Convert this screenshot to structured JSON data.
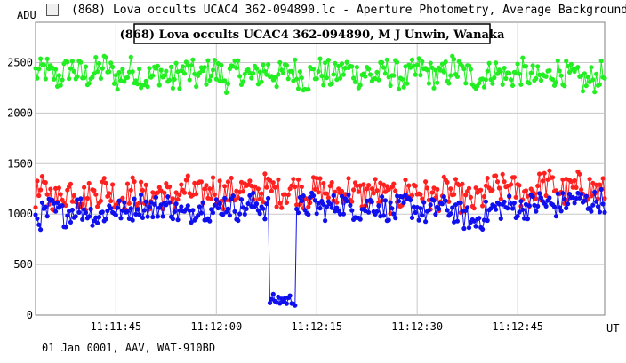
{
  "window": {
    "title": "(868) Lova occults UCAC4 362-094890.lc - Aperture Photometry, Average Background",
    "icon": "app-icon"
  },
  "footer": {
    "text": "01 Jan 0001, AAV, WAT-910BD"
  },
  "chart_data": {
    "type": "line",
    "title": "(868) Lova occults UCAC4 362-094890, M J Unwin, Wanaka",
    "xlabel": "UT",
    "ylabel": "ADU",
    "x_range": [
      "11:11:33",
      "11:12:58"
    ],
    "ylim": [
      0,
      2900
    ],
    "x_ticks": [
      "11:11:45",
      "11:12:00",
      "11:12:15",
      "11:12:30",
      "11:12:45"
    ],
    "y_ticks": [
      "0",
      "500",
      "1000",
      "1500",
      "2000",
      "2500"
    ],
    "grid": true,
    "legend": "none",
    "series": [
      {
        "color": "#22ee22",
        "samples_per_second": 4,
        "base": [
          2400,
          2430,
          2380,
          2350,
          2410,
          2450,
          2400,
          2370,
          2390,
          2420,
          2460,
          2400,
          2350,
          2380,
          2430,
          2390,
          2340,
          2360,
          2410,
          2370,
          2330,
          2380,
          2420,
          2390,
          2350,
          2400,
          2440,
          2390,
          2340,
          2380,
          2420,
          2380,
          2350,
          2390,
          2430,
          2400,
          2370,
          2390,
          2420,
          2380,
          2340,
          2380,
          2420,
          2390,
          2360,
          2400,
          2440,
          2410,
          2380,
          2400,
          2360,
          2380,
          2420,
          2400,
          2370,
          2350,
          2390,
          2430,
          2410,
          2380,
          2360,
          2400,
          2450,
          2410,
          2380,
          2360,
          2340,
          2380,
          2420,
          2390,
          2360,
          2380,
          2410,
          2380,
          2350,
          2330,
          2360,
          2400,
          2420,
          2380,
          2350,
          2320,
          2310,
          2340,
          2380,
          2360,
          2330
        ],
        "noise": 140
      },
      {
        "color": "#ff2020",
        "samples_per_second": 4,
        "base": [
          1200,
          1230,
          1180,
          1150,
          1210,
          1250,
          1190,
          1160,
          1180,
          1220,
          1260,
          1210,
          1160,
          1180,
          1230,
          1190,
          1150,
          1170,
          1220,
          1190,
          1160,
          1200,
          1240,
          1210,
          1180,
          1220,
          1260,
          1230,
          1200,
          1220,
          1250,
          1230,
          1200,
          1220,
          1260,
          1240,
          1210,
          1230,
          1260,
          1240,
          1200,
          1220,
          1240,
          1220,
          1190,
          1210,
          1250,
          1220,
          1180,
          1200,
          1230,
          1200,
          1170,
          1150,
          1180,
          1220,
          1250,
          1220,
          1190,
          1160,
          1180,
          1220,
          1200,
          1160,
          1140,
          1120,
          1170,
          1220,
          1260,
          1250,
          1280,
          1240,
          1210,
          1200,
          1240,
          1270,
          1300,
          1280,
          1240,
          1220,
          1250,
          1280,
          1260,
          1240,
          1220,
          1240,
          1260
        ],
        "noise": 150
      },
      {
        "color": "#1010ee",
        "samples_per_second": 4,
        "base": [
          960,
          1000,
          1050,
          1020,
          990,
          1030,
          1070,
          1040,
          1000,
          970,
          1010,
          1060,
          1040,
          1010,
          1050,
          1100,
          1080,
          1050,
          1070,
          1090,
          1060,
          1020,
          990,
          1030,
          1080,
          1060,
          1030,
          1060,
          1100,
          1080,
          1050,
          1070,
          1100,
          1090,
          1060,
          150,
          150,
          150,
          150,
          1060,
          1080,
          1100,
          1070,
          1050,
          1080,
          1110,
          1090,
          1060,
          1040,
          1070,
          1100,
          1080,
          1050,
          1020,
          1060,
          1090,
          1070,
          1040,
          1010,
          1040,
          1080,
          1060,
          1030,
          1000,
          960,
          910,
          960,
          1010,
          1050,
          1060,
          1080,
          1070,
          1050,
          1070,
          1090,
          1120,
          1100,
          1080,
          1100,
          1130,
          1150,
          1130,
          1110,
          1120,
          1140,
          1130,
          1120
        ],
        "noise": 120
      }
    ]
  }
}
